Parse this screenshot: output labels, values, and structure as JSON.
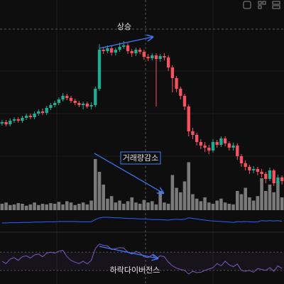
{
  "chart_data": {
    "type": "candlestick",
    "annotations": [
      "상승",
      "거래량감소",
      "하락다이버전스"
    ],
    "up_color": "#22ab94",
    "down_color": "#f7525f",
    "ylim": [
      0,
      300
    ],
    "open": [
      126,
      128,
      125,
      130,
      132,
      130,
      134,
      137,
      135,
      140,
      143,
      141,
      148,
      152,
      155,
      160,
      165,
      162,
      158,
      155,
      152,
      154,
      150,
      152,
      175,
      230,
      228,
      232,
      226,
      230,
      234,
      236,
      228,
      225,
      230,
      227,
      220,
      218,
      222,
      217,
      221,
      219,
      205,
      190,
      175,
      165,
      150,
      115,
      110,
      100,
      95,
      92,
      88,
      100,
      96,
      105,
      98,
      92,
      95,
      80,
      70,
      65,
      60,
      62,
      58,
      55,
      48,
      60,
      42,
      50
    ],
    "high": [
      131,
      131,
      133,
      135,
      135,
      137,
      140,
      140,
      143,
      146,
      147,
      151,
      155,
      158,
      163,
      169,
      168,
      165,
      161,
      158,
      157,
      157,
      156,
      178,
      238,
      234,
      236,
      235,
      233,
      240,
      242,
      239,
      231,
      233,
      233,
      230,
      224,
      225,
      225,
      224,
      225,
      222,
      208,
      193,
      178,
      168,
      153,
      120,
      113,
      104,
      100,
      96,
      104,
      103,
      108,
      108,
      101,
      99,
      98,
      83,
      74,
      68,
      66,
      65,
      62,
      58,
      64,
      62,
      54,
      53
    ],
    "low": [
      123,
      122,
      122,
      127,
      127,
      127,
      131,
      132,
      132,
      137,
      138,
      138,
      145,
      149,
      152,
      157,
      159,
      155,
      152,
      149,
      146,
      147,
      146,
      149,
      172,
      224,
      225,
      222,
      222,
      227,
      231,
      224,
      220,
      221,
      224,
      216,
      214,
      215,
      150,
      213,
      215,
      200,
      170,
      170,
      160,
      145,
      108,
      104,
      95,
      90,
      86,
      83,
      85,
      92,
      93,
      94,
      88,
      88,
      75,
      65,
      60,
      55,
      56,
      53,
      50,
      42,
      45,
      38,
      38,
      40
    ],
    "close": [
      128,
      125,
      130,
      132,
      130,
      134,
      137,
      135,
      140,
      143,
      141,
      148,
      152,
      155,
      160,
      165,
      162,
      158,
      155,
      152,
      154,
      150,
      152,
      175,
      230,
      228,
      232,
      226,
      230,
      234,
      236,
      228,
      225,
      230,
      227,
      220,
      218,
      222,
      217,
      221,
      219,
      205,
      190,
      175,
      165,
      150,
      115,
      110,
      100,
      95,
      92,
      88,
      100,
      96,
      105,
      98,
      92,
      95,
      80,
      70,
      65,
      60,
      62,
      58,
      55,
      48,
      60,
      42,
      50,
      45
    ],
    "volume_color": "#7a7a7a",
    "volume_ylim": [
      0,
      100
    ],
    "volume": [
      10,
      12,
      8,
      9,
      11,
      10,
      7,
      9,
      12,
      8,
      10,
      9,
      11,
      10,
      13,
      9,
      14,
      12,
      8,
      10,
      12,
      9,
      15,
      80,
      60,
      40,
      18,
      22,
      12,
      15,
      10,
      14,
      20,
      12,
      10,
      16,
      12,
      14,
      9,
      30,
      12,
      10,
      55,
      35,
      28,
      45,
      75,
      25,
      18,
      14,
      20,
      12,
      10,
      15,
      18,
      12,
      10,
      9,
      30,
      25,
      35,
      20,
      15,
      22,
      50,
      30,
      40,
      28,
      45,
      20
    ],
    "ma_color": "#2962ff",
    "ma_ylim": [
      0,
      100
    ],
    "ma": [
      40,
      40,
      41,
      41,
      41,
      42,
      42,
      42,
      43,
      43,
      43,
      44,
      44,
      44,
      45,
      45,
      45,
      45,
      45,
      44,
      44,
      44,
      44,
      52,
      58,
      60,
      60,
      59,
      58,
      58,
      57,
      56,
      56,
      55,
      54,
      54,
      53,
      52,
      52,
      52,
      51,
      50,
      52,
      53,
      52,
      53,
      58,
      56,
      54,
      52,
      50,
      48,
      47,
      46,
      45,
      44,
      43,
      42,
      44,
      44,
      45,
      44,
      43,
      44,
      48,
      47,
      48,
      47,
      48,
      46
    ],
    "rsi_color": "#7e57c2",
    "rsi_ylim": [
      0,
      100
    ],
    "rsi_bands": [
      70,
      30
    ],
    "rsi": [
      50,
      45,
      55,
      58,
      52,
      60,
      62,
      57,
      64,
      66,
      60,
      68,
      70,
      68,
      72,
      74,
      60,
      52,
      48,
      45,
      50,
      44,
      52,
      78,
      88,
      85,
      84,
      76,
      78,
      80,
      79,
      70,
      66,
      72,
      68,
      60,
      58,
      64,
      56,
      62,
      60,
      48,
      40,
      35,
      32,
      30,
      22,
      28,
      25,
      26,
      30,
      33,
      36,
      45,
      40,
      50,
      42,
      38,
      44,
      30,
      28,
      30,
      26,
      34,
      32,
      30,
      36,
      28,
      40,
      34
    ]
  }
}
